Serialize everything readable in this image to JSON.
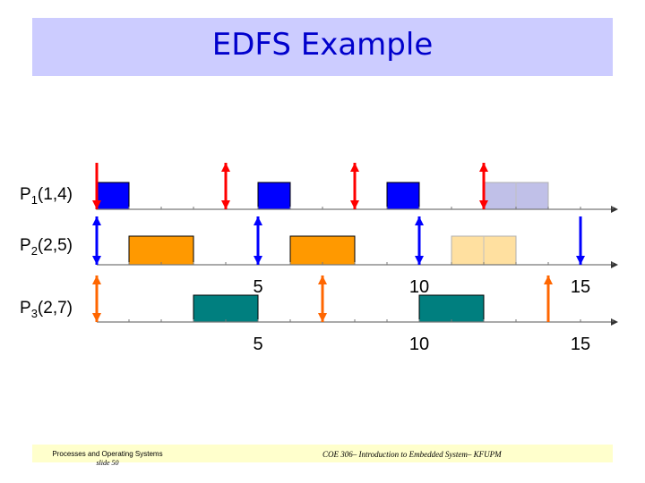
{
  "title": "EDFS Example",
  "processes": [
    {
      "name": "P",
      "sub": "1",
      "params": "(1,4)"
    },
    {
      "name": "P",
      "sub": "2",
      "params": "(2,5)"
    },
    {
      "name": "P",
      "sub": "3",
      "params": "(2,7)"
    }
  ],
  "axis_labels_row3": [
    "5",
    "10",
    "15"
  ],
  "axis_labels_bottom": [
    "5",
    "10",
    "15"
  ],
  "timeline": {
    "time_start": 0,
    "time_end": 16,
    "tasks": [
      {
        "process": "P1",
        "color": "#0000ff",
        "blocks": [
          [
            0,
            1
          ],
          [
            5,
            6
          ],
          [
            9,
            10
          ]
        ],
        "faded_blocks": [
          [
            12,
            14
          ]
        ],
        "faded_color": "#c0c0e8",
        "arrows": [
          {
            "t": 0,
            "kind": "down"
          },
          {
            "t": 4,
            "kind": "both"
          },
          {
            "t": 8,
            "kind": "both"
          },
          {
            "t": 12,
            "kind": "both"
          }
        ],
        "arrow_color": "#ff0000"
      },
      {
        "process": "P2",
        "color": "#ff9900",
        "blocks": [
          [
            1,
            3
          ],
          [
            6,
            8
          ]
        ],
        "faded_blocks": [
          [
            11,
            13
          ]
        ],
        "faded_color": "#ffe0a0",
        "arrows": [
          {
            "t": 0,
            "kind": "both"
          },
          {
            "t": 5,
            "kind": "both"
          },
          {
            "t": 10,
            "kind": "both"
          },
          {
            "t": 15,
            "kind": "down"
          }
        ],
        "arrow_color": "#0000ff"
      },
      {
        "process": "P3",
        "color": "#007f7f",
        "blocks": [
          [
            3,
            5
          ],
          [
            10,
            12
          ]
        ],
        "faded_blocks": [],
        "arrows": [
          {
            "t": 0,
            "kind": "both"
          },
          {
            "t": 7,
            "kind": "both"
          },
          {
            "t": 14,
            "kind": "up"
          }
        ],
        "arrow_color": "#ff6600"
      }
    ]
  },
  "footer": {
    "left_line1": "Processes and Operating Systems",
    "left_line2": "slide 50",
    "center": "COE 306– Introduction to Embedded System– KFUPM"
  },
  "colors": {
    "title_bg": "#ccccff",
    "title_text": "#0000cc",
    "footer_bg": "#ffffcc"
  }
}
